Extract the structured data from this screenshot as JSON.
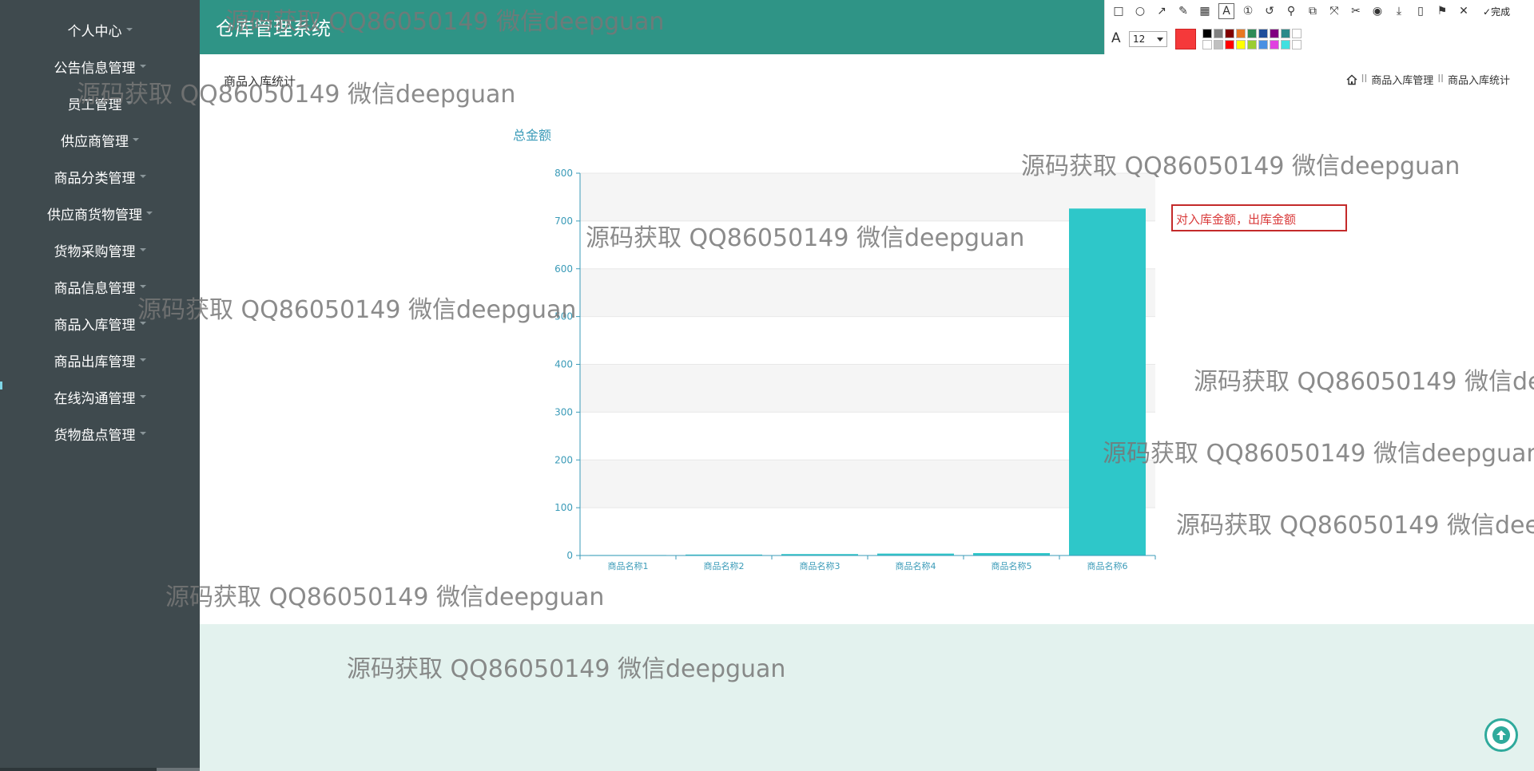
{
  "app": {
    "title": "仓库管理系统"
  },
  "sidebar": {
    "items": [
      {
        "label": "个人中心"
      },
      {
        "label": "公告信息管理"
      },
      {
        "label": "员工管理"
      },
      {
        "label": "供应商管理"
      },
      {
        "label": "商品分类管理"
      },
      {
        "label": "供应商货物管理"
      },
      {
        "label": "货物采购管理"
      },
      {
        "label": "商品信息管理"
      },
      {
        "label": "商品入库管理"
      },
      {
        "label": "商品出库管理"
      },
      {
        "label": "在线沟通管理"
      },
      {
        "label": "货物盘点管理"
      }
    ]
  },
  "page": {
    "title": "商品入库统计",
    "breadcrumb": [
      "商品入库管理",
      "商品入库统计"
    ],
    "breadcrumb_sep": "II"
  },
  "annotation_toolbar": {
    "done_label": "完成",
    "font_size": "12",
    "current_color": "#f5393a",
    "swatches": [
      "#000000",
      "#808080",
      "#800000",
      "#e87722",
      "#2e8b57",
      "#1f4e9a",
      "#800080",
      "#2a8a8a",
      "#ffffff",
      "#ffffff",
      "#c0c0c0",
      "#ff0000",
      "#ffff00",
      "#9acd32",
      "#4a90e2",
      "#e040e0",
      "#40e0e0",
      "#ffffff"
    ],
    "tools": [
      "rectangle-icon",
      "ellipse-icon",
      "arrow-icon",
      "pen-icon",
      "mosaic-icon",
      "text-icon",
      "number-icon",
      "undo-icon",
      "pin-icon",
      "copy-icon",
      "close-small-icon",
      "pin-screen-icon",
      "record-icon",
      "download-icon",
      "phone-icon",
      "bookmark-icon",
      "cancel-icon",
      "check-icon"
    ]
  },
  "annotation_text": "对入库金额，出库金额",
  "watermark_text": "源码获取 QQ86050149 微信deepguan",
  "chart_data": {
    "type": "bar",
    "title": "总金额",
    "categories": [
      "商品名称1",
      "商品名称2",
      "商品名称3",
      "商品名称4",
      "商品名称5",
      "商品名称6"
    ],
    "values": [
      1,
      2,
      3,
      4,
      5,
      726
    ],
    "ylim": [
      0,
      800
    ],
    "yticks": [
      0,
      100,
      200,
      300,
      400,
      500,
      600,
      700,
      800
    ],
    "bar_color": "#2ec7c9",
    "band_color": "#f5f5f5",
    "axis_color": "#3b9bb8",
    "grid": true
  }
}
